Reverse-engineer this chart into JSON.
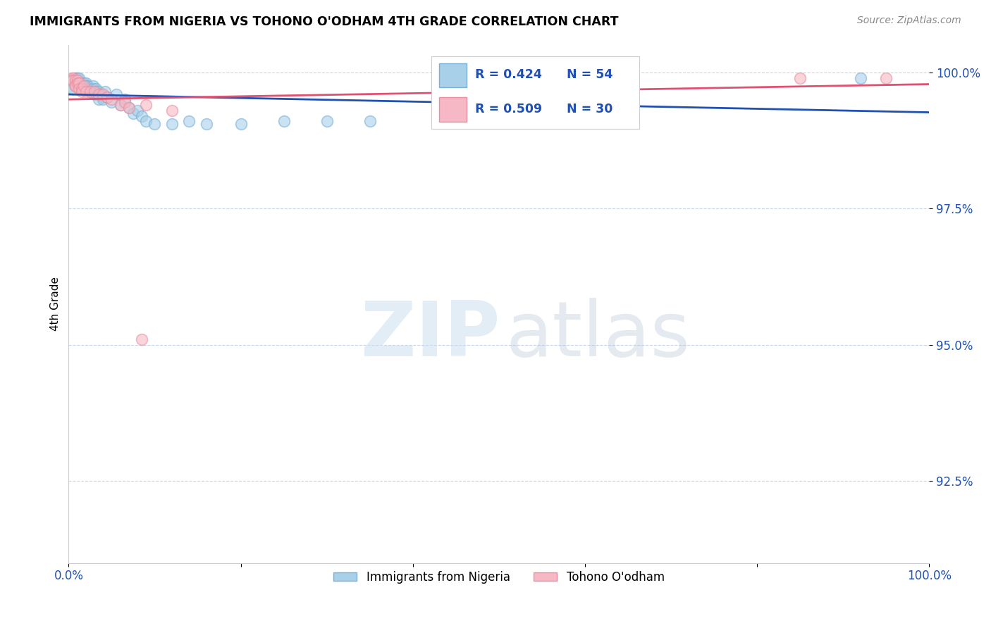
{
  "title": "IMMIGRANTS FROM NIGERIA VS TOHONO O'ODHAM 4TH GRADE CORRELATION CHART",
  "source": "Source: ZipAtlas.com",
  "ylabel": "4th Grade",
  "xlim": [
    0.0,
    1.0
  ],
  "ylim": [
    0.91,
    1.005
  ],
  "yticks": [
    0.925,
    0.95,
    0.975,
    1.0
  ],
  "ytick_labels": [
    "92.5%",
    "95.0%",
    "97.5%",
    "100.0%"
  ],
  "xticks": [
    0.0,
    0.2,
    0.4,
    0.6,
    0.8,
    1.0
  ],
  "xtick_labels": [
    "0.0%",
    "",
    "",
    "",
    "",
    "100.0%"
  ],
  "blue_face_color": "#a8d0e8",
  "blue_edge_color": "#7ab0d8",
  "pink_face_color": "#f5b8c4",
  "pink_edge_color": "#e890a0",
  "blue_line_color": "#2050b0",
  "pink_line_color": "#e05070",
  "legend_text_color": "#2050b0",
  "legend_R_blue": "R = 0.424",
  "legend_N_blue": "N = 54",
  "legend_R_pink": "R = 0.509",
  "legend_N_pink": "N = 30",
  "bottom_legend_blue": "Immigrants from Nigeria",
  "bottom_legend_pink": "Tohono O'odham",
  "blue_scatter_x": [
    0.005,
    0.005,
    0.005,
    0.008,
    0.008,
    0.008,
    0.01,
    0.01,
    0.012,
    0.012,
    0.012,
    0.015,
    0.015,
    0.018,
    0.018,
    0.02,
    0.02,
    0.02,
    0.022,
    0.022,
    0.025,
    0.025,
    0.028,
    0.028,
    0.03,
    0.03,
    0.032,
    0.032,
    0.035,
    0.035,
    0.038,
    0.04,
    0.04,
    0.042,
    0.045,
    0.05,
    0.055,
    0.06,
    0.065,
    0.07,
    0.075,
    0.08,
    0.085,
    0.09,
    0.1,
    0.12,
    0.14,
    0.16,
    0.2,
    0.25,
    0.3,
    0.35,
    0.5,
    0.92
  ],
  "blue_scatter_y": [
    0.998,
    0.997,
    0.997,
    0.999,
    0.999,
    0.998,
    0.999,
    0.998,
    0.999,
    0.998,
    0.998,
    0.998,
    0.997,
    0.998,
    0.9975,
    0.998,
    0.9975,
    0.997,
    0.9975,
    0.997,
    0.997,
    0.9965,
    0.9975,
    0.997,
    0.9965,
    0.996,
    0.997,
    0.9965,
    0.9965,
    0.995,
    0.996,
    0.9955,
    0.995,
    0.9965,
    0.9955,
    0.9945,
    0.996,
    0.994,
    0.995,
    0.9935,
    0.9925,
    0.993,
    0.992,
    0.991,
    0.9905,
    0.9905,
    0.991,
    0.9905,
    0.9905,
    0.991,
    0.991,
    0.991,
    0.999,
    0.999
  ],
  "pink_scatter_x": [
    0.005,
    0.005,
    0.005,
    0.005,
    0.008,
    0.008,
    0.008,
    0.01,
    0.01,
    0.012,
    0.012,
    0.015,
    0.015,
    0.018,
    0.02,
    0.025,
    0.03,
    0.035,
    0.04,
    0.045,
    0.05,
    0.06,
    0.065,
    0.07,
    0.085,
    0.09,
    0.12,
    0.5,
    0.85,
    0.95
  ],
  "pink_scatter_y": [
    0.999,
    0.999,
    0.9985,
    0.9985,
    0.9985,
    0.9975,
    0.9975,
    0.9985,
    0.998,
    0.998,
    0.997,
    0.997,
    0.9965,
    0.9975,
    0.9965,
    0.9965,
    0.9965,
    0.996,
    0.996,
    0.9955,
    0.995,
    0.994,
    0.9945,
    0.9935,
    0.951,
    0.994,
    0.993,
    0.999,
    0.999,
    0.999
  ]
}
